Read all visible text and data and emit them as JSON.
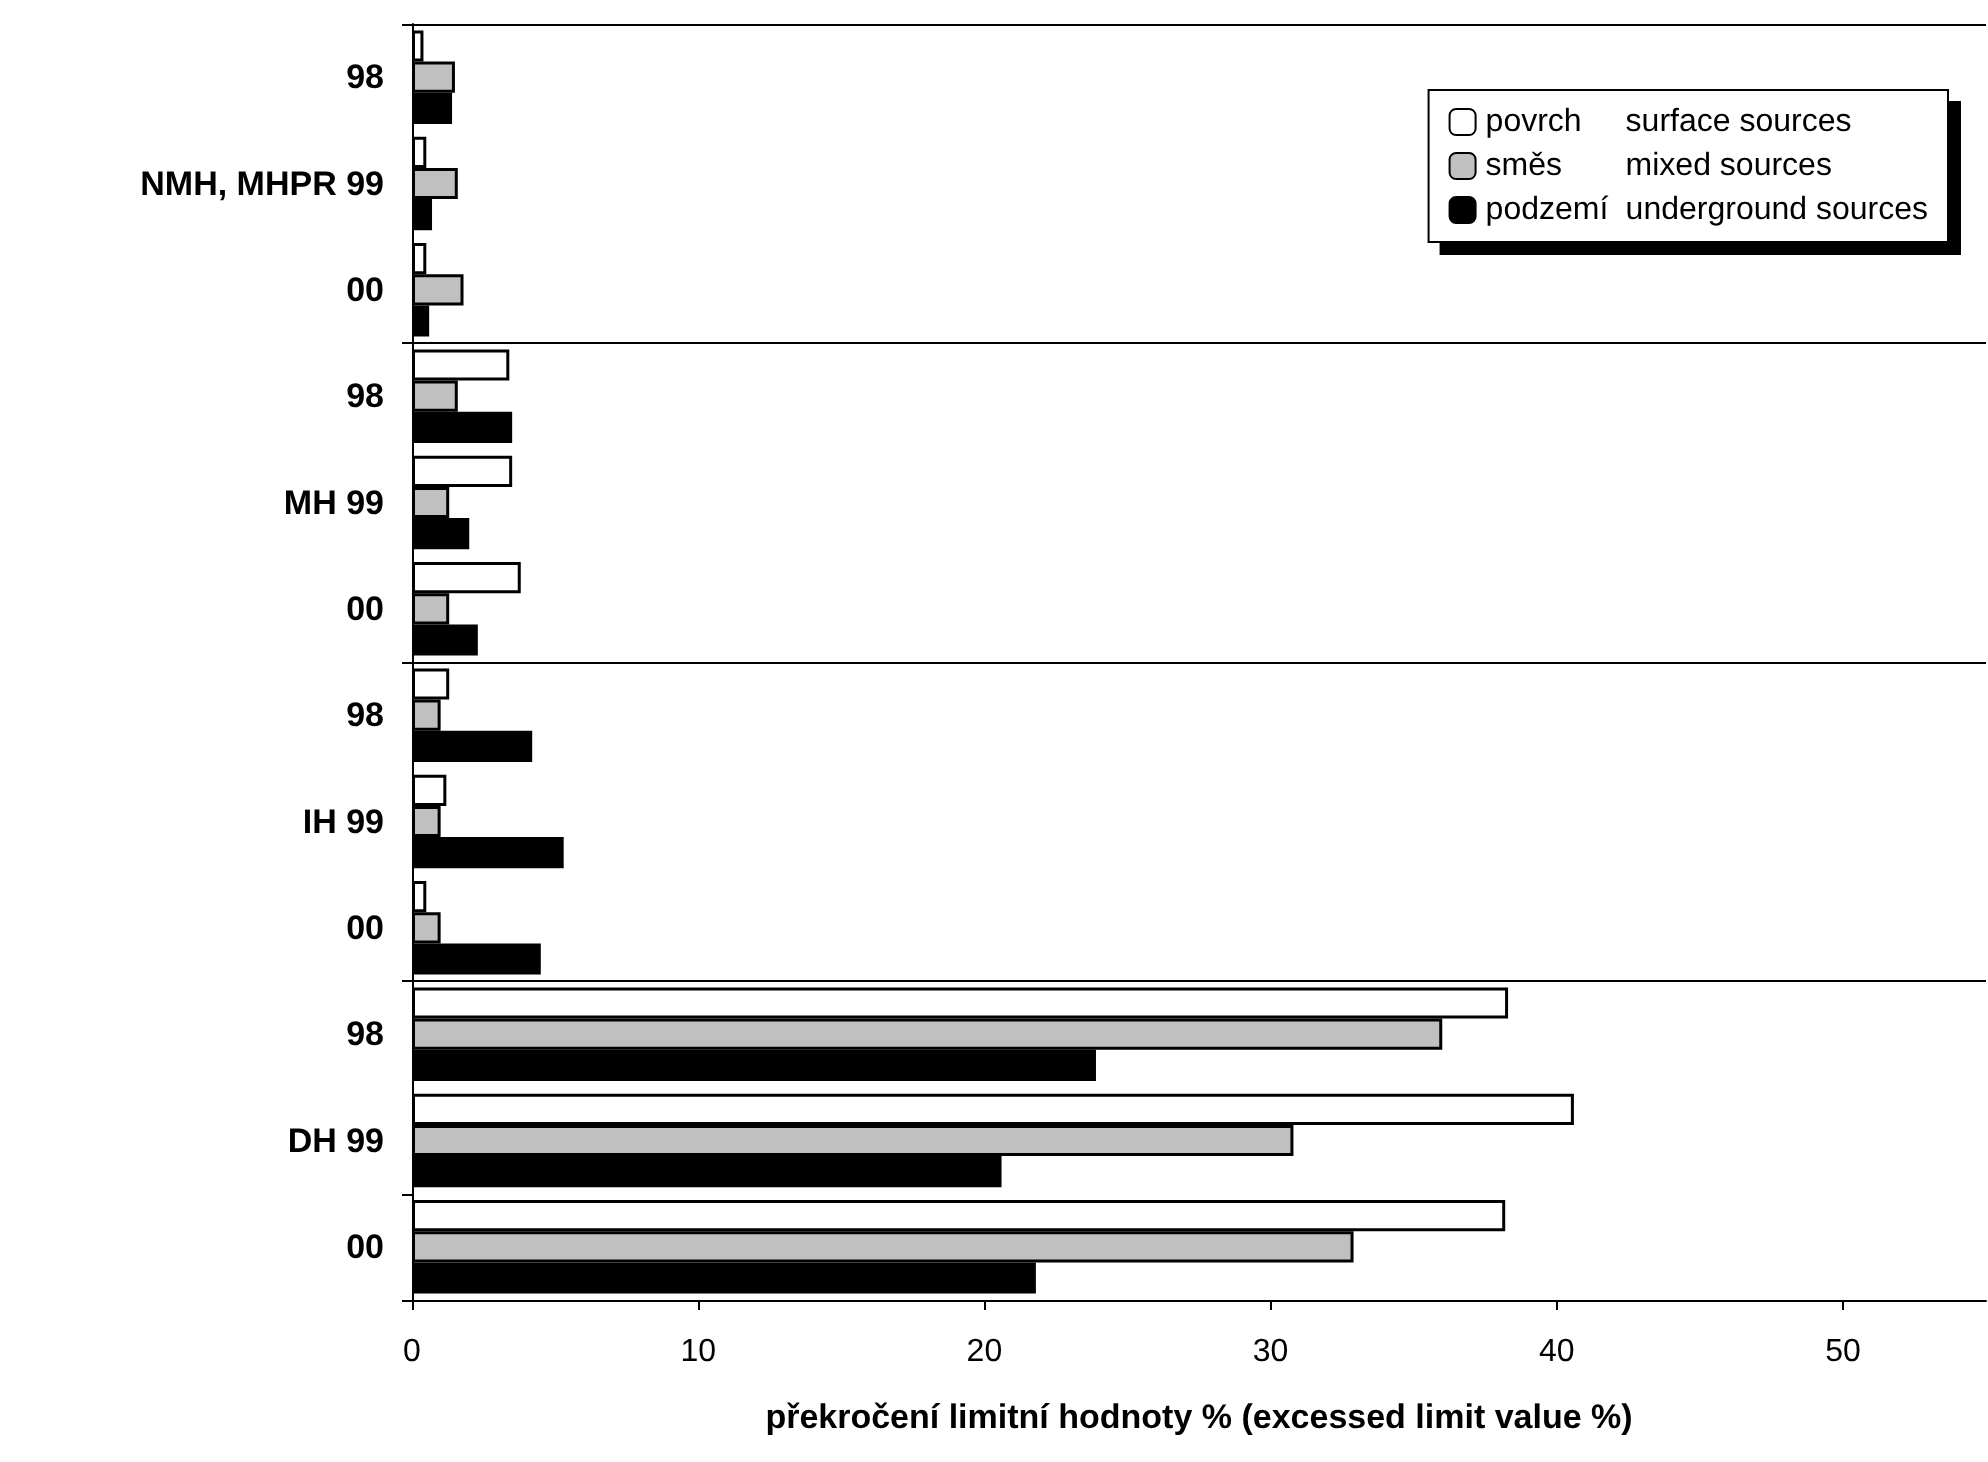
{
  "chart_data": {
    "type": "bar",
    "orientation": "horizontal",
    "xlabel": "překročení limitní hodnoty % (excessed limit value %)",
    "categories": [
      "98",
      "NMH, MHPR 99",
      "00",
      "98",
      "MH 99",
      "00",
      "98",
      "IH 99",
      "00",
      "98",
      "DH 99",
      "00"
    ],
    "series": [
      {
        "name": "povrch surface sources",
        "color": "#ffffff",
        "values": [
          0.4,
          0.5,
          0.5,
          3.4,
          3.5,
          3.8,
          1.3,
          1.2,
          0.5,
          38.3,
          40.6,
          38.2
        ]
      },
      {
        "name": "směs mixed sources",
        "color": "#c0c0c0",
        "values": [
          1.5,
          1.6,
          1.8,
          1.6,
          1.3,
          1.3,
          1.0,
          1.0,
          1.0,
          36.0,
          30.8,
          32.9
        ]
      },
      {
        "name": "podzemí underground sources",
        "color": "#000000",
        "values": [
          1.4,
          0.7,
          0.6,
          3.5,
          2.0,
          2.3,
          4.2,
          5.3,
          4.5,
          23.9,
          20.6,
          21.8
        ]
      }
    ],
    "xlim": [
      0,
      55
    ],
    "xticks": [
      0,
      10,
      20,
      30,
      40,
      50
    ],
    "grid": "y",
    "legend": "top right"
  }
}
